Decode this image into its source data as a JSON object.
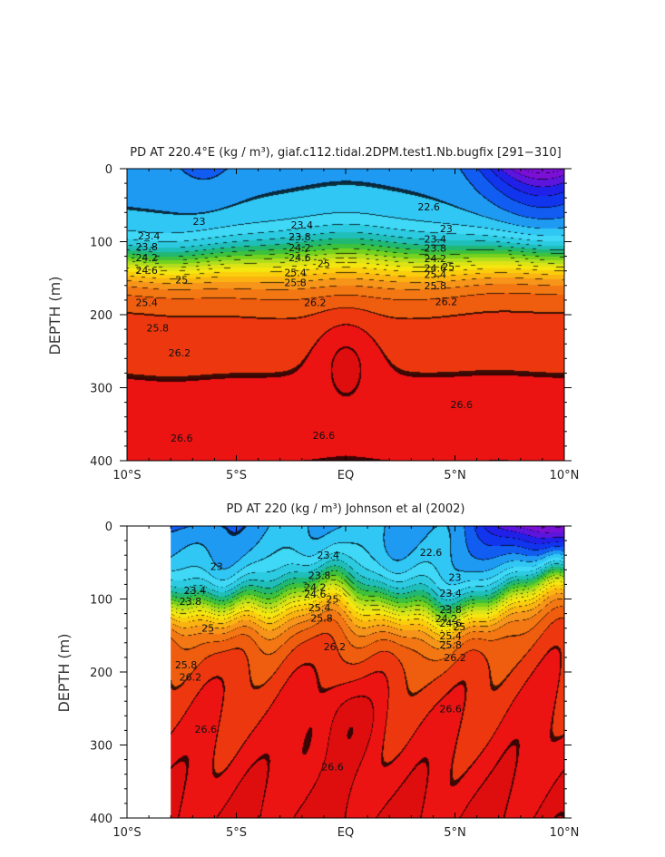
{
  "chart_data": [
    {
      "type": "heatmap",
      "title": "PD AT 220.4°E (kg / m³), giaf.c112.tidal.2DPM.test1.Nb.bugfix [291−310]",
      "xlabel": "",
      "ylabel": "DEPTH (m)",
      "xlim": [
        -10,
        10
      ],
      "ylim": [
        400,
        0
      ],
      "x_ticks": [
        -10,
        -5,
        0,
        5,
        10
      ],
      "x_tick_labels": [
        "10°S",
        "5°S",
        "EQ",
        "5°N",
        "10°N"
      ],
      "y_ticks": [
        0,
        100,
        200,
        300,
        400
      ],
      "y_tick_labels": [
        "0",
        "100",
        "200",
        "300",
        "400"
      ],
      "data_x_start": -10,
      "contour_labels": [
        {
          "text": "23",
          "x": -6.7,
          "y": 72
        },
        {
          "text": "23.4",
          "x": -9.0,
          "y": 92
        },
        {
          "text": "23.8",
          "x": -9.1,
          "y": 107
        },
        {
          "text": "24.2",
          "x": -9.1,
          "y": 122
        },
        {
          "text": "24.6",
          "x": -9.1,
          "y": 139
        },
        {
          "text": "25",
          "x": -7.5,
          "y": 152
        },
        {
          "text": "25.4",
          "x": -9.1,
          "y": 183
        },
        {
          "text": "25.8",
          "x": -8.6,
          "y": 218
        },
        {
          "text": "26.2",
          "x": -7.6,
          "y": 252
        },
        {
          "text": "26.6",
          "x": -7.5,
          "y": 369
        },
        {
          "text": "26.6",
          "x": -1.0,
          "y": 365
        },
        {
          "text": "23.4",
          "x": -2.0,
          "y": 77
        },
        {
          "text": "23.8",
          "x": -2.1,
          "y": 93
        },
        {
          "text": "24.2",
          "x": -2.1,
          "y": 108
        },
        {
          "text": "24.6",
          "x": -2.1,
          "y": 122
        },
        {
          "text": "25",
          "x": -1.0,
          "y": 130
        },
        {
          "text": "25.4",
          "x": -2.3,
          "y": 142
        },
        {
          "text": "25.8",
          "x": -2.3,
          "y": 156
        },
        {
          "text": "26.2",
          "x": -1.4,
          "y": 183
        },
        {
          "text": "22.6",
          "x": 3.8,
          "y": 52
        },
        {
          "text": "23",
          "x": 4.6,
          "y": 82
        },
        {
          "text": "23.4",
          "x": 4.1,
          "y": 96
        },
        {
          "text": "23.8",
          "x": 4.1,
          "y": 109
        },
        {
          "text": "24.2",
          "x": 4.1,
          "y": 123
        },
        {
          "text": "24.6",
          "x": 4.1,
          "y": 136
        },
        {
          "text": "25",
          "x": 4.7,
          "y": 134
        },
        {
          "text": "25.4",
          "x": 4.1,
          "y": 145
        },
        {
          "text": "25.8",
          "x": 4.1,
          "y": 160
        },
        {
          "text": "26.2",
          "x": 4.6,
          "y": 182
        },
        {
          "text": "26.6",
          "x": 5.3,
          "y": 323
        }
      ]
    },
    {
      "type": "heatmap",
      "title": "PD AT 220 (kg / m³) Johnson et al (2002)",
      "xlabel": "",
      "ylabel": "DEPTH (m)",
      "xlim": [
        -10,
        10
      ],
      "ylim": [
        400,
        0
      ],
      "x_ticks": [
        -10,
        -5,
        0,
        5,
        10
      ],
      "x_tick_labels": [
        "10°S",
        "5°S",
        "EQ",
        "5°N",
        "10°N"
      ],
      "y_ticks": [
        0,
        100,
        200,
        300,
        400
      ],
      "y_tick_labels": [
        "0",
        "100",
        "200",
        "300",
        "400"
      ],
      "data_x_start": -8,
      "contour_labels": [
        {
          "text": "23",
          "x": -5.9,
          "y": 55
        },
        {
          "text": "23.4",
          "x": -6.9,
          "y": 88
        },
        {
          "text": "23.8",
          "x": -7.1,
          "y": 103
        },
        {
          "text": "25",
          "x": -6.3,
          "y": 140
        },
        {
          "text": "25.8",
          "x": -7.3,
          "y": 190
        },
        {
          "text": "26.2",
          "x": -7.1,
          "y": 207
        },
        {
          "text": "26.6",
          "x": -6.4,
          "y": 278
        },
        {
          "text": "26.6",
          "x": -0.6,
          "y": 330
        },
        {
          "text": "23.4",
          "x": -0.8,
          "y": 40
        },
        {
          "text": "23.8",
          "x": -1.2,
          "y": 68
        },
        {
          "text": "24.2",
          "x": -1.4,
          "y": 84
        },
        {
          "text": "24.6",
          "x": -1.4,
          "y": 93
        },
        {
          "text": "25",
          "x": -0.6,
          "y": 100
        },
        {
          "text": "25.4",
          "x": -1.2,
          "y": 112
        },
        {
          "text": "25.8",
          "x": -1.1,
          "y": 126
        },
        {
          "text": "26.2",
          "x": -0.5,
          "y": 165
        },
        {
          "text": "22.6",
          "x": 3.9,
          "y": 36
        },
        {
          "text": "23",
          "x": 5.0,
          "y": 70
        },
        {
          "text": "23.4",
          "x": 4.8,
          "y": 92
        },
        {
          "text": "23.8",
          "x": 4.8,
          "y": 114
        },
        {
          "text": "24.2",
          "x": 4.6,
          "y": 127
        },
        {
          "text": "24.6",
          "x": 4.8,
          "y": 133
        },
        {
          "text": "25",
          "x": 5.2,
          "y": 138
        },
        {
          "text": "25.4",
          "x": 4.8,
          "y": 150
        },
        {
          "text": "25.8",
          "x": 4.8,
          "y": 163
        },
        {
          "text": "26.2",
          "x": 5.0,
          "y": 180
        },
        {
          "text": "26.6",
          "x": 4.8,
          "y": 250
        }
      ]
    }
  ]
}
